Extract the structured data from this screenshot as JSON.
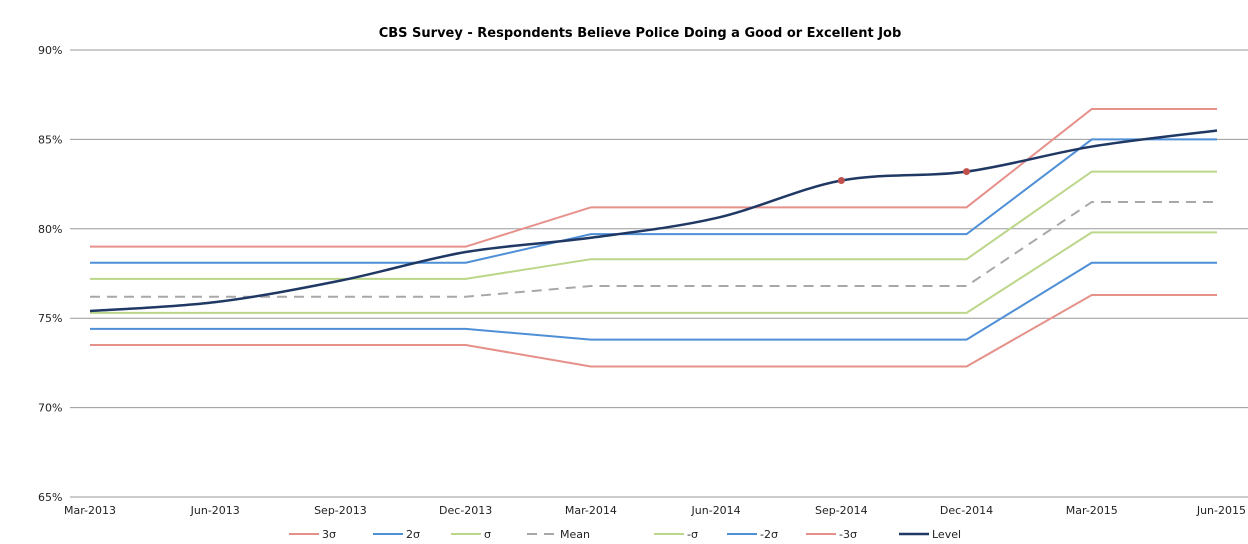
{
  "chart_data": {
    "type": "line",
    "title": "CBS Survey - Respondents Believe Police Doing a Good or Excellent Job",
    "xlabel": "",
    "ylabel": "",
    "categories": [
      "Mar-2013",
      "Jun-2013",
      "Sep-2013",
      "Dec-2013",
      "Mar-2014",
      "Jun-2014",
      "Sep-2014",
      "Dec-2014",
      "Mar-2015",
      "Jun-2015"
    ],
    "y_ticks": [
      "65%",
      "70%",
      "75%",
      "80%",
      "85%",
      "90%"
    ],
    "ylim": [
      65,
      90
    ],
    "grid": "horizontal",
    "legend_position": "bottom",
    "series": [
      {
        "name": "3σ",
        "color": "#e6908a",
        "dash": false,
        "values": [
          79.0,
          79.0,
          79.0,
          79.0,
          81.2,
          81.2,
          81.2,
          81.2,
          86.7,
          86.7
        ]
      },
      {
        "name": "2σ",
        "color": "#4f8fd6",
        "dash": false,
        "values": [
          78.1,
          78.1,
          78.1,
          78.1,
          79.7,
          79.7,
          79.7,
          79.7,
          85.0,
          85.0
        ]
      },
      {
        "name": "σ",
        "color": "#bcd68a",
        "dash": false,
        "values": [
          77.2,
          77.2,
          77.2,
          77.2,
          78.3,
          78.3,
          78.3,
          78.3,
          83.2,
          83.2
        ]
      },
      {
        "name": "Mean",
        "color": "#a8a8a8",
        "dash": true,
        "values": [
          76.2,
          76.2,
          76.2,
          76.2,
          76.8,
          76.8,
          76.8,
          76.8,
          81.5,
          81.5
        ]
      },
      {
        "name": "-σ",
        "color": "#bcd68a",
        "dash": false,
        "values": [
          75.3,
          75.3,
          75.3,
          75.3,
          75.3,
          75.3,
          75.3,
          75.3,
          79.8,
          79.8
        ]
      },
      {
        "name": "-2σ",
        "color": "#4f8fd6",
        "dash": false,
        "values": [
          74.4,
          74.4,
          74.4,
          74.4,
          73.8,
          73.8,
          73.8,
          73.8,
          78.1,
          78.1
        ]
      },
      {
        "name": "-3σ",
        "color": "#e6908a",
        "dash": false,
        "values": [
          73.5,
          73.5,
          73.5,
          73.5,
          72.3,
          72.3,
          72.3,
          72.3,
          76.3,
          76.3
        ]
      },
      {
        "name": "Level",
        "color": "#1f3864",
        "dash": false,
        "values": [
          75.4,
          75.9,
          77.1,
          78.7,
          79.5,
          80.6,
          82.7,
          83.2,
          84.6,
          85.5
        ],
        "marked_points": [
          6,
          7
        ],
        "marker_color": "#c0504d"
      }
    ]
  }
}
